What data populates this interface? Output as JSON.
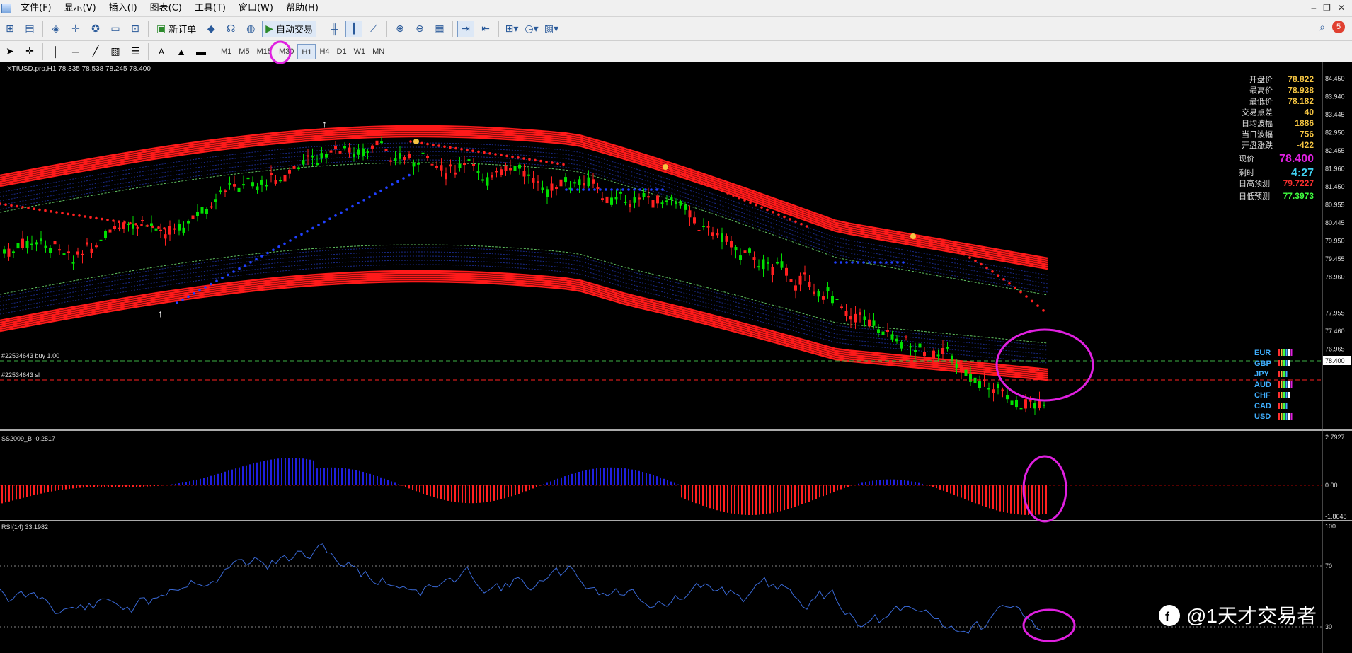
{
  "menu": [
    "文件(F)",
    "显示(V)",
    "插入(I)",
    "图表(C)",
    "工具(T)",
    "窗口(W)",
    "帮助(H)"
  ],
  "toolbar": {
    "new_order_label": "新订单",
    "auto_trade_label": "自动交易",
    "timeframes": [
      "M1",
      "M5",
      "M15",
      "M30",
      "H1",
      "H4",
      "D1",
      "W1",
      "MN"
    ],
    "active_timeframe": "H1",
    "notification_count": "5"
  },
  "chart": {
    "header": "XTIUSD.pro,H1  78.335 78.538 78.245 78.400",
    "price_axis": [
      "84.450",
      "83.940",
      "83.445",
      "82.950",
      "82.455",
      "81.960",
      "81.450",
      "80.955",
      "80.445",
      "79.950",
      "79.455",
      "78.960",
      "78.400",
      "77.955",
      "77.460",
      "76.965"
    ],
    "current_price_tag": "78.400",
    "order_line_label": "#22534643 buy 1.00",
    "sl_line_label": "#22534643 sl",
    "info_panel": [
      {
        "label": "开盘价",
        "value": "78.822",
        "color": "#f5c542"
      },
      {
        "label": "最高价",
        "value": "78.938",
        "color": "#f5c542"
      },
      {
        "label": "最低价",
        "value": "78.182",
        "color": "#f5c542"
      },
      {
        "label": "交易点差",
        "value": "40",
        "color": "#f5c542"
      },
      {
        "label": "日均波幅",
        "value": "1886",
        "color": "#f5c542"
      },
      {
        "label": "当日波幅",
        "value": "756",
        "color": "#f5c542"
      },
      {
        "label": "开盘涨跌",
        "value": "-422",
        "color": "#f5c542"
      }
    ],
    "current_price_label": "现价",
    "current_price_value": "78.400",
    "time_left_label": "剩时",
    "time_left_value": "4:27",
    "forecast_high_label": "日高预测",
    "forecast_high_value": "79.7227",
    "forecast_low_label": "日低预测",
    "forecast_low_value": "77.3973",
    "currencies": [
      "EUR",
      "GBP",
      "JPY",
      "AUD",
      "CHF",
      "CAD",
      "USD"
    ]
  },
  "indicator1": {
    "header": "SS2009_B -0.2517",
    "axis": [
      "2.7927",
      "0.00",
      "-1.8648"
    ]
  },
  "indicator2": {
    "header": "RSI(14) 33.1982",
    "axis": [
      "100",
      "70",
      "30"
    ]
  },
  "watermark": "@1天才交易者",
  "colors": {
    "bull": "#00e000",
    "bear": "#ff2020",
    "band": "#ff1a1a",
    "dots_red": "#ff2020",
    "dots_blue": "#2040ff",
    "annotation": "#e020e0"
  }
}
